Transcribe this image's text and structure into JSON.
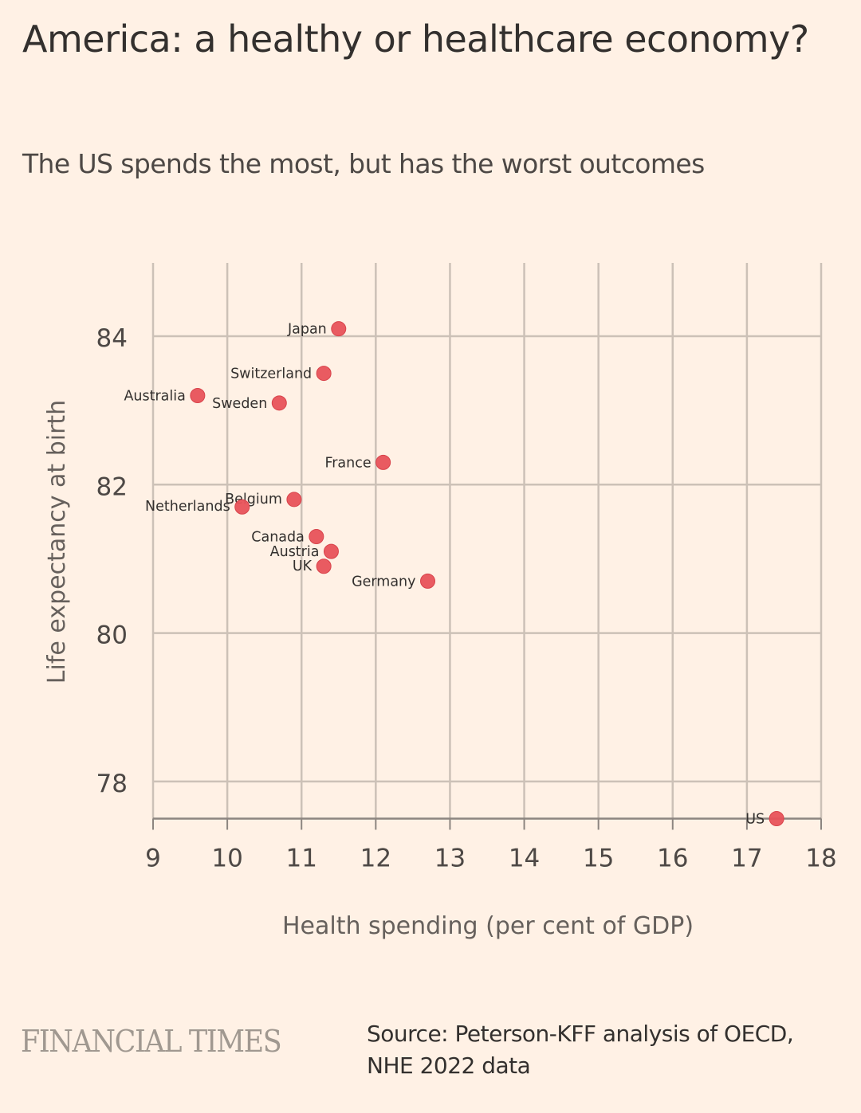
{
  "header": {
    "title": "America: a healthy or healthcare economy?",
    "subtitle": "The US spends the most, but has the worst outcomes"
  },
  "footer": {
    "brand": "FINANCIAL TIMES",
    "source_line1": "Source: Peterson-KFF analysis of OECD,",
    "source_line2": "NHE 2022 data"
  },
  "colors": {
    "background": "#fff1e5",
    "point": "#e8525a",
    "grid": "#ccc1b7",
    "axis": "#8c8580"
  },
  "chart_data": {
    "type": "scatter",
    "title": "America: a healthy or healthcare economy?",
    "subtitle": "The US spends the most, but has the worst outcomes",
    "xlabel": "Health spending (per cent of GDP)",
    "ylabel": "Life expectancy at birth",
    "xlim": [
      9,
      18
    ],
    "ylim": [
      77.5,
      85
    ],
    "xticks": [
      9,
      10,
      11,
      12,
      13,
      14,
      15,
      16,
      17,
      18
    ],
    "yticks": [
      78,
      80,
      82,
      84
    ],
    "grid": true,
    "legend": "none",
    "points": [
      {
        "label": "Japan",
        "x": 11.5,
        "y": 84.1
      },
      {
        "label": "Switzerland",
        "x": 11.3,
        "y": 83.5
      },
      {
        "label": "Australia",
        "x": 9.6,
        "y": 83.2
      },
      {
        "label": "Sweden",
        "x": 10.7,
        "y": 83.1
      },
      {
        "label": "France",
        "x": 12.1,
        "y": 82.3
      },
      {
        "label": "Belgium",
        "x": 10.9,
        "y": 81.8
      },
      {
        "label": "Netherlands",
        "x": 10.2,
        "y": 81.7
      },
      {
        "label": "Canada",
        "x": 11.2,
        "y": 81.3
      },
      {
        "label": "Austria",
        "x": 11.4,
        "y": 81.1
      },
      {
        "label": "UK",
        "x": 11.3,
        "y": 80.9
      },
      {
        "label": "Germany",
        "x": 12.7,
        "y": 80.7
      },
      {
        "label": "US",
        "x": 17.4,
        "y": 77.5
      }
    ]
  }
}
